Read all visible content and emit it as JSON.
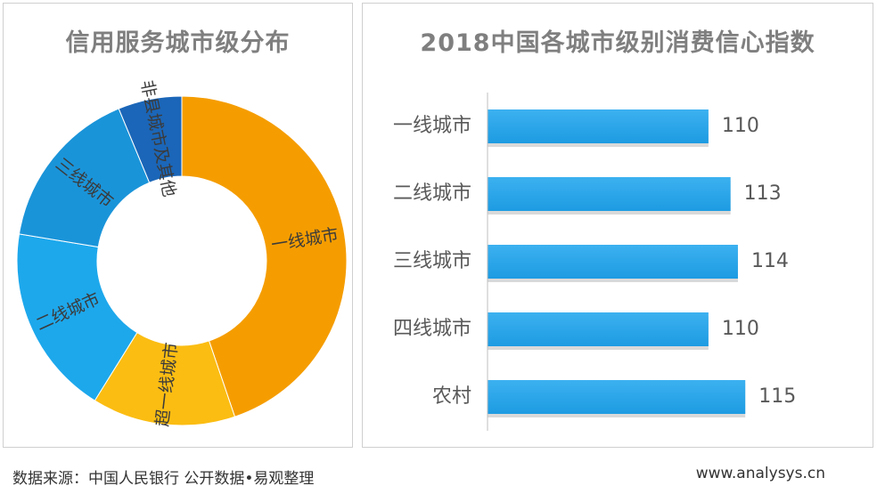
{
  "charts": {
    "donut_title": "信用服务城市级分布",
    "bar_title": "2018中国各城市级别消费信心指数"
  },
  "footer": {
    "source": "数据来源：中国人民银行 公开数据•易观整理",
    "website": "www.analysys.cn"
  },
  "chart_data": [
    {
      "type": "pie",
      "title": "信用服务城市级分布",
      "donut": true,
      "slices": [
        {
          "label": "一线城市",
          "value": 43,
          "color": "#f59d00"
        },
        {
          "label": "超一线城市",
          "value": 13.5,
          "color": "#fbbd12"
        },
        {
          "label": "二线城市",
          "value": 18,
          "color": "#1da8ec"
        },
        {
          "label": "三线城市",
          "value": 15.5,
          "color": "#1a94d9"
        },
        {
          "label": "非县城市及其他",
          "value": 6,
          "color": "#1b66b8"
        }
      ]
    },
    {
      "type": "bar",
      "orientation": "horizontal",
      "title": "2018中国各城市级别消费信心指数",
      "categories": [
        "一线城市",
        "二线城市",
        "三线城市",
        "四线城市",
        "农村"
      ],
      "values": [
        110,
        113,
        114,
        110,
        115
      ],
      "xlim": [
        80,
        118
      ],
      "bar_color": "#1d9be2",
      "show_data_labels": true,
      "grid": false
    }
  ]
}
